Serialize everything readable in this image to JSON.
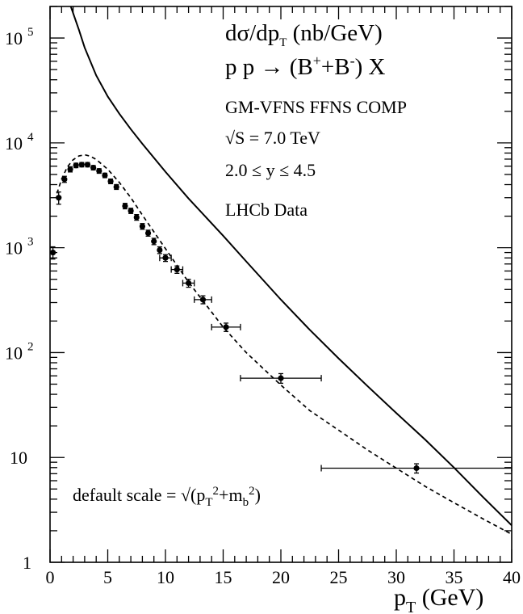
{
  "chart_data": {
    "type": "line",
    "title_lines": [
      "dσ/dp_T (nb/GeV)",
      "p p → (B+ + B-) X"
    ],
    "annotations": [
      "GM-VFNS FFNS COMP",
      "√S = 7.0 TeV",
      "2.0 ≤  y ≤ 4.5",
      "LHCb Data"
    ],
    "scale_note": "default scale = √(p_T²+m_b²)",
    "xlabel": "p_T (GeV)",
    "ylabel": "",
    "xlim": [
      0,
      40
    ],
    "ylim": [
      1,
      200000
    ],
    "y_scale": "log",
    "grid": false,
    "x_ticks": [
      0,
      5,
      10,
      15,
      20,
      25,
      30,
      35,
      40
    ],
    "x_tick_labels": [
      "0",
      "5",
      "10",
      "15",
      "20",
      "25",
      "30",
      "35",
      "40"
    ],
    "y_ticks": [
      {
        "value": 1,
        "label": "1"
      },
      {
        "value": 10,
        "label": "10"
      },
      {
        "value": 100,
        "label": "10",
        "exponent": "2"
      },
      {
        "value": 1000,
        "label": "10",
        "exponent": "3"
      },
      {
        "value": 10000,
        "label": "10",
        "exponent": "4"
      },
      {
        "value": 100000,
        "label": "10",
        "exponent": "5"
      }
    ],
    "series": [
      {
        "style": "solid",
        "x": [
          1.8,
          2.5,
          3.0,
          4.0,
          5.0,
          6.0,
          7.0,
          8.0,
          10.0,
          12.0,
          15.0,
          17.0,
          20.0,
          22.5,
          25.0,
          27.5,
          30.0,
          32.5,
          35.0,
          37.5,
          40.0
        ],
        "y": [
          200000,
          120000,
          81000,
          44000,
          27700,
          19000,
          13500,
          9800,
          5300,
          2950,
          1300,
          740,
          320,
          165,
          88,
          48,
          26.5,
          14.8,
          8.0,
          4.2,
          2.25
        ]
      },
      {
        "style": "dashed",
        "x": [
          0.6,
          1.0,
          1.5,
          2.0,
          2.5,
          3.0,
          3.5,
          4.0,
          5.0,
          6.0,
          7.0,
          8.0,
          10.0,
          12.0,
          15.0,
          17.0,
          20.0,
          22.5,
          25.0,
          27.5,
          30.0,
          32.5,
          35.0,
          37.5,
          40.0
        ],
        "y": [
          3300,
          4500,
          5900,
          6900,
          7500,
          7700,
          7450,
          6950,
          5600,
          4200,
          3000,
          2050,
          980,
          470,
          175,
          100,
          49,
          28,
          18.2,
          11.8,
          7.9,
          5.3,
          3.7,
          2.6,
          1.85
        ]
      },
      {
        "name": "LHCb Data",
        "style": "points",
        "x": [
          0.25,
          0.75,
          1.25,
          1.75,
          2.25,
          2.75,
          3.25,
          3.75,
          4.25,
          4.75,
          5.25,
          5.75,
          6.5,
          7.0,
          7.5,
          8.0,
          8.5,
          9.0,
          9.5,
          10.0,
          11.0,
          12.0,
          13.25,
          15.25,
          20.0,
          31.75
        ],
        "y": [
          900,
          3000,
          4500,
          5600,
          6100,
          6200,
          6200,
          5800,
          5400,
          4900,
          4300,
          3800,
          2500,
          2250,
          1950,
          1600,
          1380,
          1150,
          950,
          800,
          620,
          460,
          320,
          175,
          57,
          7.9
        ],
        "y_err_low": [
          120,
          400,
          300,
          320,
          300,
          300,
          300,
          280,
          270,
          240,
          220,
          200,
          150,
          130,
          120,
          100,
          90,
          80,
          70,
          60,
          50,
          40,
          28,
          16,
          6,
          0.8
        ],
        "y_err_high": [
          120,
          400,
          300,
          320,
          300,
          300,
          300,
          280,
          270,
          240,
          220,
          200,
          150,
          130,
          120,
          100,
          90,
          80,
          70,
          60,
          50,
          40,
          28,
          16,
          6,
          0.8
        ],
        "x_err": [
          0.25,
          0.25,
          0.25,
          0.25,
          0.25,
          0.25,
          0.25,
          0.25,
          0.25,
          0.25,
          0.25,
          0.25,
          0.25,
          0.25,
          0.25,
          0.25,
          0.25,
          0.25,
          0.25,
          0.5,
          0.5,
          0.5,
          0.75,
          1.25,
          3.5,
          8.25
        ]
      }
    ]
  }
}
